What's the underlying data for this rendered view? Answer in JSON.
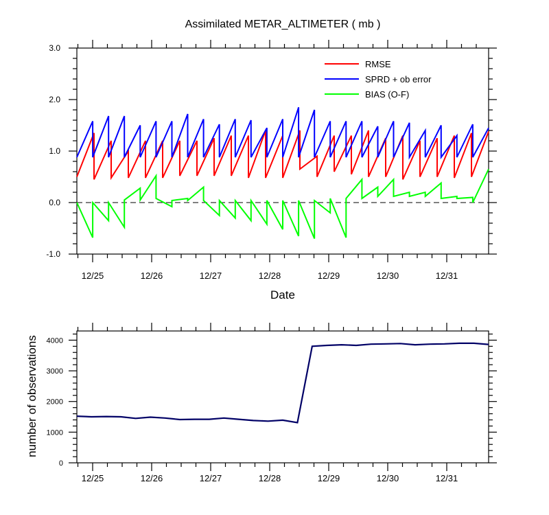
{
  "chart_data": [
    {
      "type": "line",
      "title": "Assimilated METAR_ALTIMETER ( mb )",
      "xlabel": "Date",
      "ylabel": "",
      "ylim": [
        -1.0,
        3.0
      ],
      "y_ticks": [
        "-1.0",
        "0.0",
        "1.0",
        "2.0",
        "3.0"
      ],
      "x_tick_labels": [
        "12/25",
        "12/26",
        "12/27",
        "12/28",
        "12/29",
        "12/30",
        "12/31"
      ],
      "legend_position": "top-right",
      "zero_line": "dashed",
      "series": [
        {
          "name": "RMSE",
          "color": "#ff0000",
          "values": [
            [
              0.5,
              1.35
            ],
            [
              0.45,
              1.2
            ],
            [
              0.48,
              1.0
            ],
            [
              0.48,
              1.2
            ],
            [
              0.48,
              1.2
            ],
            [
              0.48,
              1.2
            ],
            [
              0.52,
              1.2
            ],
            [
              0.52,
              1.25
            ],
            [
              0.52,
              1.3
            ],
            [
              0.52,
              1.3
            ],
            [
              0.48,
              1.4
            ],
            [
              0.48,
              1.3
            ],
            [
              0.48,
              1.4
            ],
            [
              0.65,
              0.9
            ],
            [
              0.5,
              1.3
            ],
            [
              0.6,
              1.3
            ],
            [
              0.55,
              1.4
            ],
            [
              0.5,
              1.25
            ],
            [
              0.5,
              1.3
            ],
            [
              0.45,
              1.2
            ],
            [
              0.5,
              1.25
            ],
            [
              0.5,
              1.3
            ],
            [
              0.48,
              1.35
            ],
            [
              0.5,
              1.38
            ]
          ]
        },
        {
          "name": "SPRD + ob error",
          "color": "#0000ff",
          "values": [
            [
              0.88,
              1.58
            ],
            [
              0.88,
              1.68
            ],
            [
              0.88,
              1.68
            ],
            [
              0.88,
              1.5
            ],
            [
              0.88,
              1.58
            ],
            [
              0.88,
              1.58
            ],
            [
              0.88,
              1.72
            ],
            [
              0.88,
              1.62
            ],
            [
              0.88,
              1.52
            ],
            [
              0.88,
              1.62
            ],
            [
              0.88,
              1.6
            ],
            [
              0.88,
              1.45
            ],
            [
              0.88,
              1.62
            ],
            [
              0.88,
              1.85
            ],
            [
              0.88,
              1.8
            ],
            [
              0.88,
              1.58
            ],
            [
              0.88,
              1.58
            ],
            [
              0.88,
              1.58
            ],
            [
              0.88,
              1.48
            ],
            [
              0.88,
              1.58
            ],
            [
              0.88,
              1.55
            ],
            [
              0.88,
              1.4
            ],
            [
              0.88,
              1.5
            ],
            [
              0.88,
              1.3
            ],
            [
              0.88,
              1.52
            ],
            [
              0.88,
              1.45
            ]
          ]
        },
        {
          "name": "BIAS (O-F)",
          "color": "#00ff00",
          "values": [
            [
              0.0,
              -0.68
            ],
            [
              0.0,
              -0.35
            ],
            [
              0.0,
              -0.48
            ],
            [
              0.05,
              0.28
            ],
            [
              0.05,
              0.52
            ],
            [
              0.08,
              -0.08
            ],
            [
              0.04,
              0.08
            ],
            [
              0.04,
              0.3
            ],
            [
              0.04,
              -0.25
            ],
            [
              0.04,
              -0.3
            ],
            [
              0.04,
              -0.35
            ],
            [
              0.04,
              -0.42
            ],
            [
              0.04,
              -0.52
            ],
            [
              0.04,
              -0.65
            ],
            [
              0.04,
              -0.7
            ],
            [
              0.04,
              -0.2
            ],
            [
              0.08,
              -0.68
            ],
            [
              0.08,
              0.45
            ],
            [
              0.08,
              0.3
            ],
            [
              0.12,
              0.45
            ],
            [
              0.12,
              0.2
            ],
            [
              0.12,
              0.2
            ],
            [
              0.12,
              0.38
            ],
            [
              0.08,
              0.12
            ],
            [
              0.08,
              0.1
            ],
            [
              0.0,
              0.65
            ]
          ]
        }
      ]
    },
    {
      "type": "line",
      "title": "",
      "xlabel": "",
      "ylabel": "number of observations",
      "ylim": [
        0,
        4300
      ],
      "y_ticks": [
        "0",
        "1000",
        "2000",
        "3000",
        "4000"
      ],
      "x_tick_labels": [
        "12/25",
        "12/26",
        "12/27",
        "12/28",
        "12/29",
        "12/30",
        "12/31"
      ],
      "series": [
        {
          "color": "#000066",
          "values": [
            1520,
            1500,
            1510,
            1500,
            1450,
            1490,
            1460,
            1410,
            1420,
            1420,
            1460,
            1420,
            1380,
            1360,
            1390,
            1310,
            3800,
            3830,
            3850,
            3830,
            3870,
            3880,
            3890,
            3850,
            3870,
            3880,
            3900,
            3900,
            3860
          ]
        }
      ]
    }
  ]
}
